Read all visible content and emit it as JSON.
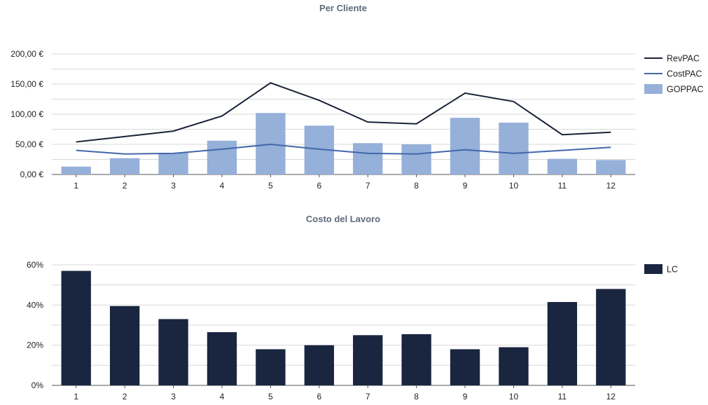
{
  "colors": {
    "revpac": "#1a2238",
    "costpac": "#4466aa",
    "goppac": "#95b0d9",
    "lc": "#1a2540"
  },
  "chart_data": [
    {
      "type": "bar+line",
      "title": "Per Cliente",
      "categories": [
        "1",
        "2",
        "3",
        "4",
        "5",
        "6",
        "7",
        "8",
        "9",
        "10",
        "11",
        "12"
      ],
      "ylim": [
        0,
        200
      ],
      "yticks": [
        0,
        50,
        100,
        150,
        200
      ],
      "ytick_labels": [
        "0,00 €",
        "50,00 €",
        "100,00 €",
        "150,00 €",
        "200,00 €"
      ],
      "grid": true,
      "legend_position": "right",
      "series": [
        {
          "name": "RevPAC",
          "kind": "line",
          "values": [
            54,
            63,
            72,
            97,
            152,
            123,
            87,
            84,
            135,
            121,
            66,
            70
          ]
        },
        {
          "name": "CostPAC",
          "kind": "line",
          "values": [
            40,
            34,
            35,
            42,
            50,
            42,
            35,
            34,
            41,
            35,
            40,
            45
          ]
        },
        {
          "name": "GOPPAC",
          "kind": "bar",
          "values": [
            13,
            27,
            36,
            56,
            102,
            81,
            52,
            50,
            94,
            86,
            26,
            24
          ]
        }
      ]
    },
    {
      "type": "bar",
      "title": "Costo del Lavoro",
      "categories": [
        "1",
        "2",
        "3",
        "4",
        "5",
        "6",
        "7",
        "8",
        "9",
        "10",
        "11",
        "12"
      ],
      "ylim": [
        0,
        60
      ],
      "yticks": [
        0,
        20,
        40,
        60
      ],
      "ytick_labels": [
        "0%",
        "20%",
        "40%",
        "60%"
      ],
      "grid": true,
      "legend_position": "right",
      "series": [
        {
          "name": "LC",
          "kind": "bar",
          "values": [
            57,
            39.5,
            33,
            26.5,
            18,
            20,
            25,
            25.5,
            18,
            19,
            41.5,
            48
          ]
        }
      ]
    }
  ]
}
